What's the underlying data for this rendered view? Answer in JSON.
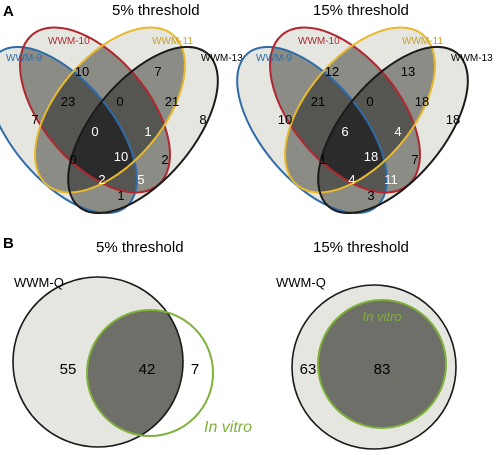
{
  "panels": {
    "a_label": "A",
    "b_label": "B"
  },
  "venn4": [
    {
      "title": "5% threshold",
      "sets": {
        "wwm9": "WWM-9",
        "wwm10": "WWM-10",
        "wwm11": "WWM-11",
        "wwm13": "WWM-13"
      },
      "regions": {
        "only9": "7",
        "only10": "10",
        "only11": "7",
        "only13": "8",
        "r9_10": "23",
        "r10_11": "0",
        "r11_13": "21",
        "r9_10_11": "0",
        "r10_11_13": "1",
        "all": "10",
        "r9_11": "0",
        "r10_13": "2",
        "r9_10_13": "2",
        "r9_11_13": "5",
        "r9_13": "1"
      }
    },
    {
      "title": "15% threshold",
      "sets": {
        "wwm9": "WWM-9",
        "wwm10": "WWM-10",
        "wwm11": "WWM-11",
        "wwm13": "WWM-13"
      },
      "regions": {
        "only9": "10",
        "only10": "12",
        "only11": "13",
        "only13": "18",
        "r9_10": "21",
        "r10_11": "0",
        "r11_13": "18",
        "r9_10_11": "6",
        "r10_11_13": "4",
        "all": "18",
        "r9_11": "1",
        "r10_13": "7",
        "r9_10_13": "4",
        "r9_11_13": "11",
        "r9_13": "3"
      }
    }
  ],
  "venn2": [
    {
      "title": "5% threshold",
      "set_q": "WWM-Q",
      "set_vitro": "In vitro",
      "only_q": "55",
      "both": "42",
      "only_vitro": "7"
    },
    {
      "title": "15% threshold",
      "set_q": "WWM-Q",
      "set_vitro": "In vitro",
      "only_q": "63",
      "both": "83"
    }
  ],
  "colors": {
    "wwm9": "#2e6ba8",
    "wwm10": "#b0282f",
    "wwm11": "#e7b92f",
    "wwm13": "#1a1a1a",
    "vitro": "#7fb13a",
    "fill_light": "#e6e6e1",
    "fill_mid": "#8c8c86",
    "fill_dark": "#2b2b2b"
  }
}
